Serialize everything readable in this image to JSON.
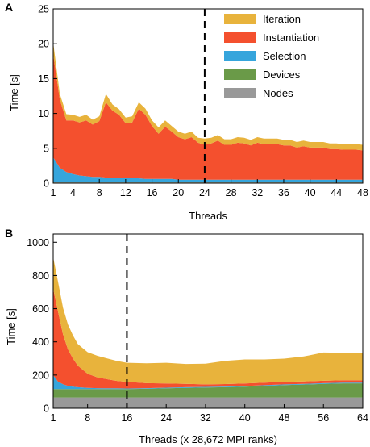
{
  "colors": {
    "Iteration": "#e8b33c",
    "Instantiation": "#f4502e",
    "Selection": "#36a5dc",
    "Devices": "#6a9a48",
    "Nodes": "#999999"
  },
  "chart_data": [
    {
      "panel_label": "A",
      "type": "area",
      "stacked": true,
      "xlabel": "Threads",
      "ylabel": "Time [s]",
      "xlim": [
        1,
        48
      ],
      "ylim": [
        0,
        25
      ],
      "xticks": [
        1,
        4,
        8,
        12,
        16,
        20,
        24,
        28,
        32,
        36,
        40,
        44,
        48
      ],
      "yticks": [
        0,
        5,
        10,
        15,
        20,
        25
      ],
      "vline_x": 24,
      "vline_style": "dashed",
      "legend_position": "top-right",
      "legend": [
        "Iteration",
        "Instantiation",
        "Selection",
        "Devices",
        "Nodes"
      ],
      "x": [
        1,
        2,
        3,
        4,
        5,
        6,
        7,
        8,
        9,
        10,
        11,
        12,
        13,
        14,
        15,
        16,
        17,
        18,
        19,
        20,
        21,
        22,
        23,
        24,
        25,
        26,
        27,
        28,
        29,
        30,
        31,
        32,
        33,
        34,
        35,
        36,
        37,
        38,
        39,
        40,
        41,
        42,
        43,
        44,
        45,
        46,
        47,
        48
      ],
      "series": [
        {
          "name": "Nodes",
          "values": [
            0.1,
            0.1,
            0.1,
            0.1,
            0.1,
            0.1,
            0.1,
            0.1,
            0.1,
            0.1,
            0.1,
            0.1,
            0.1,
            0.1,
            0.1,
            0.1,
            0.1,
            0.1,
            0.1,
            0.1,
            0.1,
            0.1,
            0.1,
            0.1,
            0.1,
            0.1,
            0.1,
            0.1,
            0.1,
            0.1,
            0.1,
            0.1,
            0.1,
            0.1,
            0.1,
            0.1,
            0.1,
            0.1,
            0.1,
            0.1,
            0.1,
            0.1,
            0.1,
            0.1,
            0.1,
            0.1,
            0.1,
            0.1
          ]
        },
        {
          "name": "Devices",
          "values": [
            0.1,
            0.1,
            0.1,
            0.1,
            0.1,
            0.1,
            0.1,
            0.1,
            0.1,
            0.1,
            0.1,
            0.1,
            0.1,
            0.1,
            0.1,
            0.1,
            0.1,
            0.1,
            0.1,
            0.1,
            0.1,
            0.1,
            0.1,
            0.1,
            0.1,
            0.1,
            0.1,
            0.1,
            0.1,
            0.1,
            0.1,
            0.1,
            0.1,
            0.1,
            0.1,
            0.1,
            0.1,
            0.1,
            0.1,
            0.1,
            0.1,
            0.1,
            0.1,
            0.1,
            0.1,
            0.1,
            0.1,
            0.1
          ]
        },
        {
          "name": "Selection",
          "values": [
            3.5,
            2.0,
            1.4,
            1.1,
            0.9,
            0.8,
            0.7,
            0.7,
            0.6,
            0.6,
            0.5,
            0.5,
            0.5,
            0.5,
            0.4,
            0.4,
            0.4,
            0.4,
            0.4,
            0.3,
            0.3,
            0.3,
            0.3,
            0.3,
            0.3,
            0.3,
            0.3,
            0.3,
            0.3,
            0.3,
            0.3,
            0.3,
            0.3,
            0.3,
            0.3,
            0.3,
            0.3,
            0.3,
            0.3,
            0.3,
            0.3,
            0.3,
            0.3,
            0.3,
            0.3,
            0.3,
            0.3,
            0.3
          ]
        },
        {
          "name": "Instantiation",
          "values": [
            14.8,
            9.8,
            7.4,
            7.7,
            7.6,
            8.0,
            7.5,
            8.0,
            10.8,
            9.6,
            9.1,
            7.9,
            8.0,
            10.0,
            9.2,
            7.6,
            6.5,
            7.5,
            6.8,
            6.1,
            5.8,
            6.1,
            5.3,
            5.0,
            5.2,
            5.6,
            5.0,
            5.0,
            5.3,
            5.2,
            4.9,
            5.3,
            5.1,
            5.1,
            5.1,
            4.9,
            4.9,
            4.6,
            4.8,
            4.6,
            4.6,
            4.6,
            4.4,
            4.4,
            4.3,
            4.3,
            4.3,
            4.2
          ]
        },
        {
          "name": "Iteration",
          "values": [
            1.7,
            0.8,
            0.9,
            0.8,
            0.8,
            0.8,
            0.7,
            0.7,
            1.2,
            0.9,
            0.8,
            0.8,
            0.9,
            0.9,
            0.9,
            0.8,
            0.9,
            0.9,
            0.8,
            0.8,
            0.8,
            0.8,
            0.7,
            0.9,
            0.8,
            0.8,
            0.8,
            0.8,
            0.8,
            0.8,
            0.8,
            0.8,
            0.8,
            0.8,
            0.8,
            0.8,
            0.8,
            0.8,
            0.8,
            0.8,
            0.8,
            0.8,
            0.8,
            0.8,
            0.8,
            0.8,
            0.8,
            0.8
          ]
        }
      ]
    },
    {
      "panel_label": "B",
      "type": "area",
      "stacked": true,
      "xlabel": "Threads (x 28,672 MPI ranks)",
      "ylabel": "Time [s]",
      "xlim": [
        1,
        64
      ],
      "ylim": [
        0,
        1050
      ],
      "xticks": [
        1,
        8,
        16,
        24,
        32,
        40,
        48,
        56,
        64
      ],
      "yticks": [
        0,
        200,
        400,
        600,
        800,
        1000
      ],
      "vline_x": 16,
      "vline_style": "dashed",
      "x": [
        1,
        2,
        3,
        4,
        5,
        6,
        8,
        10,
        12,
        14,
        16,
        20,
        24,
        28,
        32,
        36,
        40,
        44,
        48,
        52,
        56,
        60,
        64
      ],
      "series": [
        {
          "name": "Nodes",
          "values": [
            65,
            65,
            65,
            65,
            65,
            65,
            65,
            65,
            65,
            65,
            65,
            65,
            65,
            65,
            65,
            65,
            65,
            65,
            65,
            65,
            65,
            65,
            65
          ]
        },
        {
          "name": "Devices",
          "values": [
            50,
            50,
            50,
            50,
            50,
            50,
            50,
            50,
            50,
            50,
            50,
            52,
            55,
            58,
            60,
            62,
            65,
            70,
            75,
            78,
            82,
            85,
            85
          ]
        },
        {
          "name": "Selection",
          "values": [
            85,
            45,
            30,
            20,
            15,
            12,
            8,
            6,
            5,
            5,
            4,
            4,
            4,
            4,
            4,
            4,
            4,
            4,
            4,
            4,
            4,
            4,
            4
          ]
        },
        {
          "name": "Instantiation",
          "values": [
            520,
            420,
            300,
            220,
            170,
            130,
            85,
            65,
            55,
            45,
            40,
            30,
            25,
            20,
            15,
            15,
            15,
            15,
            15,
            15,
            15,
            15,
            15
          ]
        },
        {
          "name": "Iteration",
          "values": [
            190,
            180,
            160,
            150,
            140,
            130,
            130,
            130,
            125,
            120,
            115,
            120,
            125,
            120,
            125,
            140,
            145,
            140,
            140,
            150,
            170,
            165,
            165
          ]
        }
      ]
    }
  ]
}
